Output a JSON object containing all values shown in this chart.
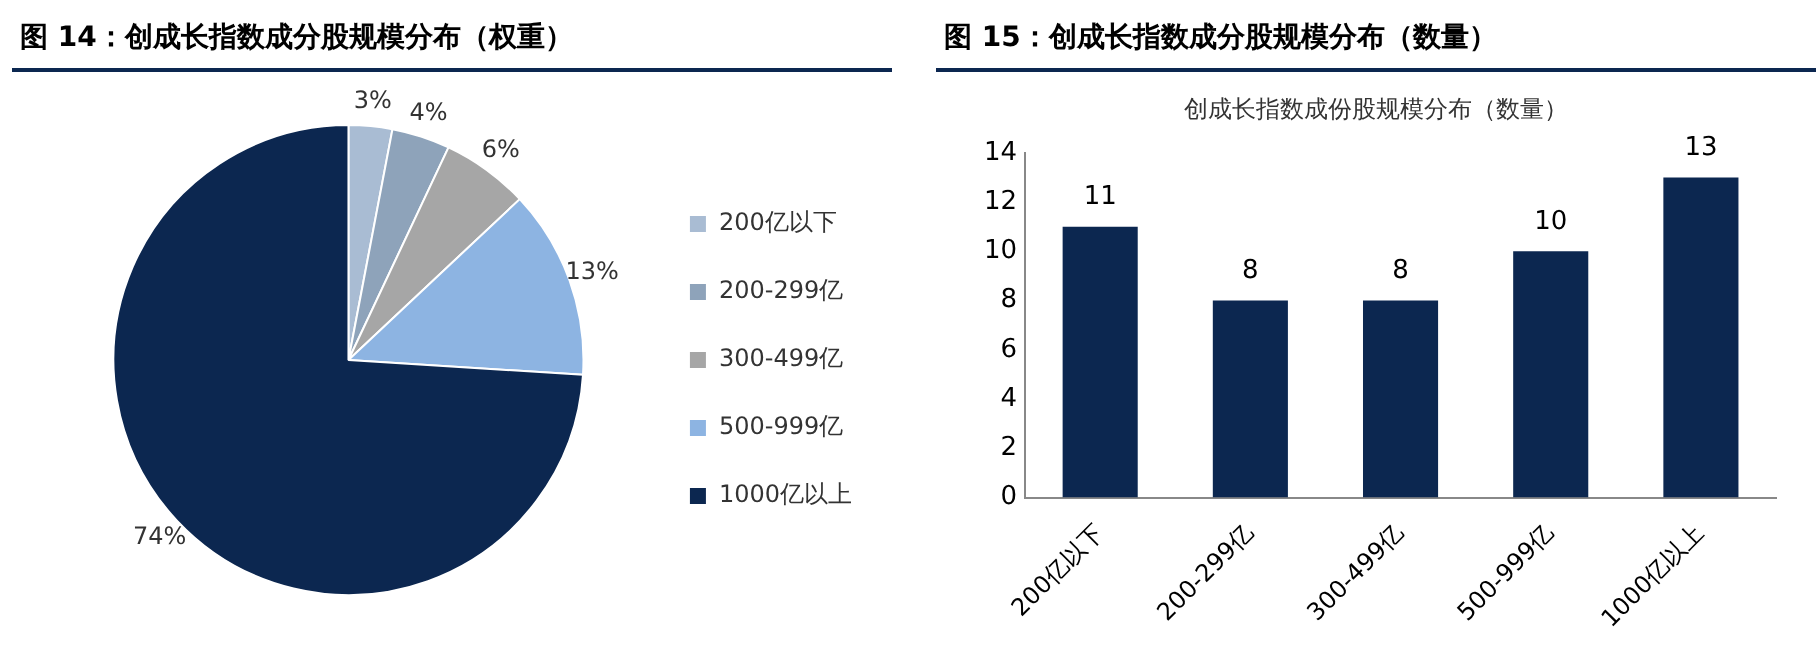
{
  "chart_data": [
    {
      "type": "pie",
      "title": "图 14：创成长指数成分股规模分布（权重）",
      "categories": [
        "200亿以下",
        "200-299亿",
        "300-499亿",
        "500-999亿",
        "1000亿以上"
      ],
      "values": [
        3,
        4,
        6,
        13,
        74
      ],
      "colors": [
        "#a9bcd3",
        "#8ea3ba",
        "#a6a6a6",
        "#8db4e2",
        "#0c2750"
      ],
      "value_labels": [
        "3%",
        "4%",
        "6%",
        "13%",
        "74%"
      ],
      "legend": "right"
    },
    {
      "type": "bar",
      "title": "图 15：创成长指数成分股规模分布（数量）",
      "subtitle": "创成长指数成份股规模分布（数量）",
      "categories": [
        "200亿以下",
        "200-299亿",
        "300-499亿",
        "500-999亿",
        "1000亿以上"
      ],
      "values": [
        11,
        8,
        8,
        10,
        13
      ],
      "color": "#0c2750",
      "ylim": [
        0,
        14
      ],
      "yticks": [
        0,
        2,
        4,
        6,
        8,
        10,
        12,
        14
      ],
      "data_labels": true,
      "grid": false,
      "legend": false
    }
  ]
}
